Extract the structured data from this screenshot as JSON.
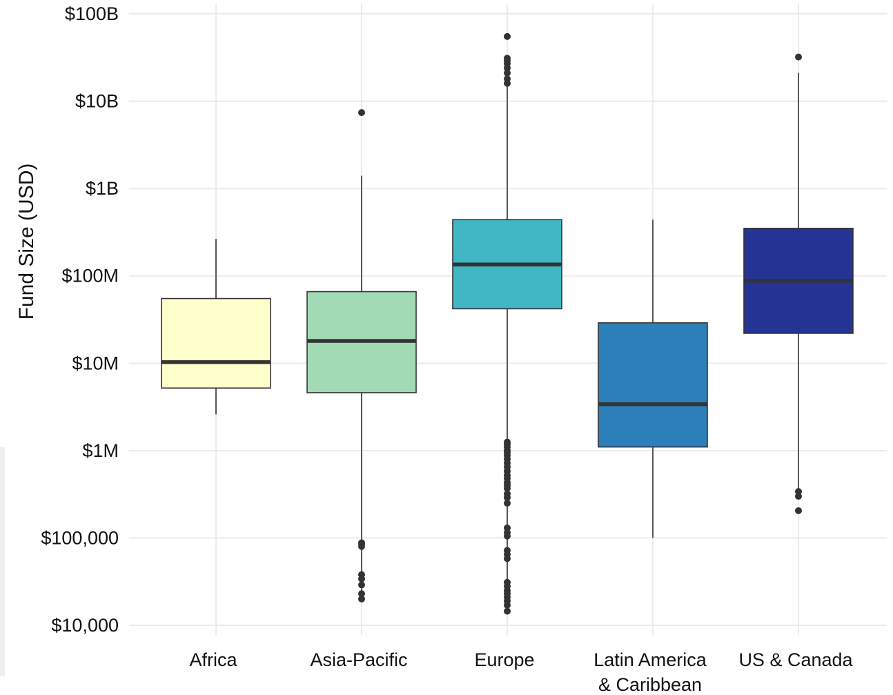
{
  "chart_data": {
    "type": "box",
    "title": "",
    "xlabel": "",
    "ylabel": "Fund Size (USD)",
    "yscale": "log10",
    "ylim": [
      10000,
      100000000000
    ],
    "grid": true,
    "legend": "none",
    "y_ticks": [
      {
        "value": 10000,
        "label": "$10,000"
      },
      {
        "value": 100000,
        "label": "$100,000"
      },
      {
        "value": 1000000,
        "label": "$1M"
      },
      {
        "value": 10000000,
        "label": "$10M"
      },
      {
        "value": 100000000,
        "label": "$100M"
      },
      {
        "value": 1000000000,
        "label": "$1B"
      },
      {
        "value": 10000000000,
        "label": "$10B"
      },
      {
        "value": 100000000000,
        "label": "$100B"
      }
    ],
    "categories": [
      {
        "label": [
          "Africa"
        ],
        "color": "#ffffcc",
        "whisker_low": 2600000,
        "q1": 5200000,
        "median": 10300000,
        "q3": 55000000,
        "whisker_high": 265000000,
        "outliers": []
      },
      {
        "label": [
          "Asia-Pacific"
        ],
        "color": "#a1dab4",
        "whisker_low": 20000,
        "q1": 4600000,
        "median": 18000000,
        "q3": 66000000,
        "whisker_high": 1400000000,
        "outliers": [
          7400000000,
          88000,
          85000,
          80000,
          38000,
          34000,
          29000,
          23000,
          20000
        ]
      },
      {
        "label": [
          "Europe"
        ],
        "color": "#41b6c4",
        "whisker_low": 14000,
        "q1": 42000000,
        "median": 135000000,
        "q3": 440000000,
        "whisker_high": 15000000000,
        "outliers": [
          55000000000,
          31000000000,
          29000000000,
          27000000000,
          24000000000,
          21000000000,
          18000000000,
          16000000000,
          1250000,
          1180000,
          1100000,
          1000000,
          950000,
          880000,
          800000,
          720000,
          650000,
          580000,
          520000,
          480000,
          430000,
          400000,
          370000,
          320000,
          290000,
          250000,
          130000,
          115000,
          105000,
          72000,
          65000,
          58000,
          31000,
          28000,
          25000,
          23000,
          21000,
          19000,
          17000,
          14500
        ]
      },
      {
        "label": [
          "Latin America",
          "& Caribbean"
        ],
        "color": "#2c7fb8",
        "whisker_low": 100000,
        "q1": 1100000,
        "median": 3400000,
        "q3": 29000000,
        "whisker_high": 440000000,
        "outliers": []
      },
      {
        "label": [
          "US & Canada"
        ],
        "color": "#253494",
        "whisker_low": 350000,
        "q1": 22000000,
        "median": 88000000,
        "q3": 350000000,
        "whisker_high": 21000000000,
        "outliers": [
          32000000000,
          340000,
          300000,
          205000
        ]
      }
    ]
  }
}
